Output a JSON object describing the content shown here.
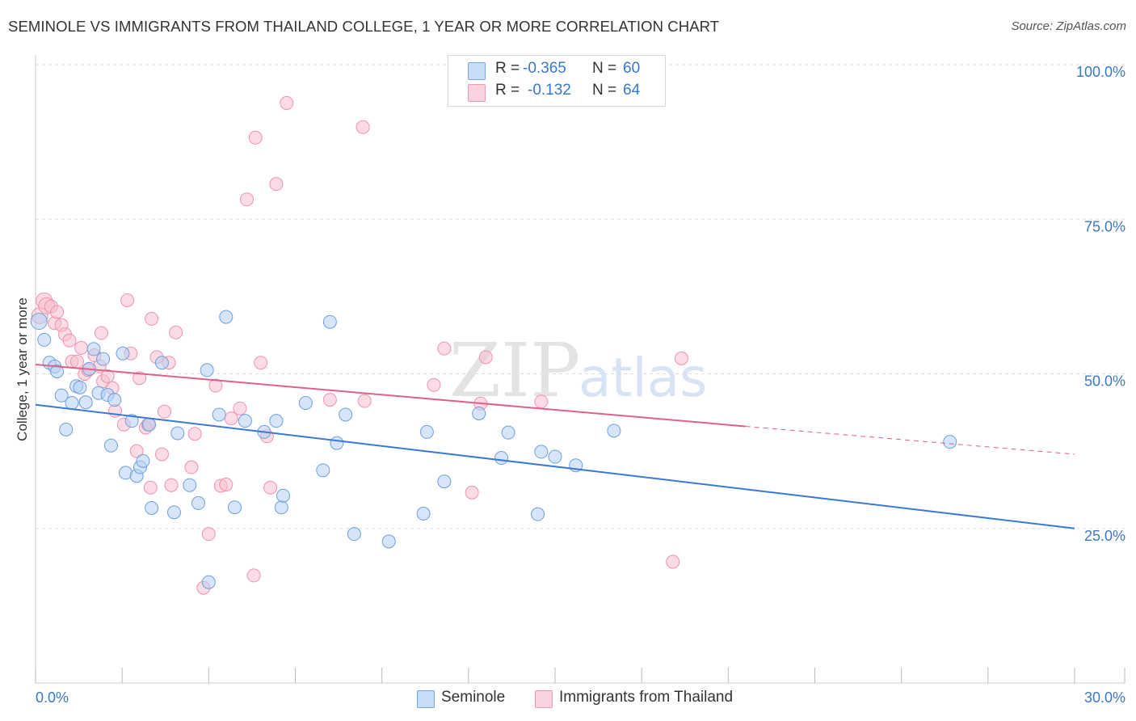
{
  "title": "SEMINOLE VS IMMIGRANTS FROM THAILAND COLLEGE, 1 YEAR OR MORE CORRELATION CHART",
  "source": "Source: ZipAtlas.com",
  "watermark": {
    "zip": "ZIP",
    "atlas": "atlas"
  },
  "legend_top": [
    {
      "r_label": "R =",
      "r_value": "-0.365",
      "n_label": "N =",
      "n_value": "60",
      "color": "#a8c8f0"
    },
    {
      "r_label": "R =",
      "r_value": "-0.132",
      "n_label": "N =",
      "n_value": "64",
      "color": "#f6b8c9"
    }
  ],
  "legend_bottom": [
    {
      "label": "Seminole",
      "color": "#a8c8f0"
    },
    {
      "label": "Immigrants from Thailand",
      "color": "#f6b8c9"
    }
  ],
  "chart_data": {
    "type": "scatter",
    "title": "SEMINOLE VS IMMIGRANTS FROM THAILAND COLLEGE, 1 YEAR OR MORE CORRELATION CHART",
    "xlabel": "",
    "ylabel": "College, 1 year or more",
    "xlim": [
      0,
      30
    ],
    "ylim": [
      0,
      100
    ],
    "x_tick_labels": [
      "0.0%",
      "30.0%"
    ],
    "y_tick_labels": [
      "25.0%",
      "50.0%",
      "75.0%",
      "100.0%"
    ],
    "y_ticks": [
      25,
      50,
      75,
      100
    ],
    "colors": {
      "seminole": "#3a78d4",
      "thailand": "#e0608c",
      "axis_text": "#3a78c8"
    },
    "series": [
      {
        "name": "Seminole",
        "R": -0.365,
        "N": 60,
        "trend": {
          "x0": 0,
          "y0": 45.0,
          "x1": 30,
          "y1": 25.0
        },
        "points": [
          [
            0.1,
            58.5
          ],
          [
            0.25,
            55.5
          ],
          [
            0.4,
            51.8
          ],
          [
            0.55,
            51.2
          ],
          [
            0.62,
            50.4
          ],
          [
            0.75,
            46.5
          ],
          [
            0.88,
            41.0
          ],
          [
            1.05,
            45.3
          ],
          [
            1.18,
            48.0
          ],
          [
            1.28,
            47.8
          ],
          [
            1.45,
            45.4
          ],
          [
            1.55,
            50.8
          ],
          [
            1.68,
            54.0
          ],
          [
            1.82,
            46.9
          ],
          [
            1.95,
            52.4
          ],
          [
            2.08,
            46.6
          ],
          [
            2.18,
            38.4
          ],
          [
            2.28,
            45.8
          ],
          [
            2.52,
            53.3
          ],
          [
            2.6,
            34.0
          ],
          [
            2.78,
            42.4
          ],
          [
            2.92,
            33.5
          ],
          [
            3.02,
            34.9
          ],
          [
            3.1,
            35.9
          ],
          [
            3.28,
            41.8
          ],
          [
            3.35,
            28.3
          ],
          [
            3.65,
            51.8
          ],
          [
            4.0,
            27.6
          ],
          [
            4.1,
            40.4
          ],
          [
            4.45,
            32.0
          ],
          [
            4.7,
            29.1
          ],
          [
            4.95,
            50.6
          ],
          [
            5.0,
            16.3
          ],
          [
            5.3,
            43.4
          ],
          [
            5.5,
            59.2
          ],
          [
            5.75,
            28.4
          ],
          [
            6.05,
            42.4
          ],
          [
            6.6,
            40.6
          ],
          [
            6.95,
            42.4
          ],
          [
            7.1,
            28.4
          ],
          [
            7.15,
            30.3
          ],
          [
            7.8,
            45.3
          ],
          [
            8.3,
            34.4
          ],
          [
            8.5,
            58.4
          ],
          [
            8.7,
            38.8
          ],
          [
            8.95,
            43.4
          ],
          [
            9.2,
            24.1
          ],
          [
            10.2,
            22.9
          ],
          [
            11.2,
            27.4
          ],
          [
            11.3,
            40.6
          ],
          [
            11.8,
            32.6
          ],
          [
            12.8,
            43.6
          ],
          [
            13.45,
            36.4
          ],
          [
            13.65,
            40.5
          ],
          [
            14.5,
            27.3
          ],
          [
            14.6,
            37.4
          ],
          [
            15.0,
            36.6
          ],
          [
            15.6,
            35.2
          ],
          [
            16.7,
            40.8
          ],
          [
            26.4,
            39.0
          ]
        ]
      },
      {
        "name": "Immigrants from Thailand",
        "R": -0.132,
        "N": 64,
        "trend": {
          "x0": 0,
          "y0": 51.5,
          "x1": 20.5,
          "y1": 41.5,
          "dash_x1": 30,
          "dash_y1": 37.0
        },
        "points": [
          [
            0.12,
            59.4
          ],
          [
            0.25,
            61.8
          ],
          [
            0.32,
            61.0
          ],
          [
            0.45,
            60.9
          ],
          [
            0.55,
            58.2
          ],
          [
            0.62,
            60.0
          ],
          [
            0.75,
            57.9
          ],
          [
            0.85,
            56.4
          ],
          [
            0.98,
            55.4
          ],
          [
            1.05,
            52.0
          ],
          [
            1.2,
            52.0
          ],
          [
            1.32,
            54.2
          ],
          [
            1.42,
            50.0
          ],
          [
            1.52,
            50.6
          ],
          [
            1.7,
            53.0
          ],
          [
            1.85,
            51.2
          ],
          [
            1.95,
            48.8
          ],
          [
            2.08,
            49.6
          ],
          [
            2.22,
            47.7
          ],
          [
            2.3,
            44.0
          ],
          [
            1.9,
            56.6
          ],
          [
            2.55,
            41.8
          ],
          [
            2.65,
            61.9
          ],
          [
            2.75,
            53.3
          ],
          [
            2.92,
            37.5
          ],
          [
            3.0,
            49.3
          ],
          [
            3.18,
            41.3
          ],
          [
            3.25,
            41.8
          ],
          [
            3.32,
            31.6
          ],
          [
            3.35,
            58.9
          ],
          [
            3.5,
            52.7
          ],
          [
            3.65,
            37.0
          ],
          [
            3.72,
            43.9
          ],
          [
            3.85,
            51.8
          ],
          [
            3.92,
            32.0
          ],
          [
            4.05,
            56.7
          ],
          [
            4.5,
            34.9
          ],
          [
            4.6,
            40.3
          ],
          [
            4.85,
            15.4
          ],
          [
            5.0,
            24.1
          ],
          [
            5.2,
            48.1
          ],
          [
            5.35,
            31.9
          ],
          [
            5.5,
            32.1
          ],
          [
            5.65,
            42.8
          ],
          [
            5.9,
            44.4
          ],
          [
            6.1,
            78.2
          ],
          [
            6.3,
            17.4
          ],
          [
            6.35,
            88.2
          ],
          [
            6.5,
            51.8
          ],
          [
            6.68,
            39.9
          ],
          [
            6.78,
            31.6
          ],
          [
            6.95,
            80.7
          ],
          [
            7.25,
            93.8
          ],
          [
            8.5,
            45.8
          ],
          [
            9.45,
            89.9
          ],
          [
            9.5,
            45.6
          ],
          [
            11.5,
            48.2
          ],
          [
            11.8,
            54.1
          ],
          [
            12.6,
            30.8
          ],
          [
            13.0,
            52.7
          ],
          [
            12.85,
            45.2
          ],
          [
            14.6,
            45.5
          ],
          [
            18.4,
            19.6
          ],
          [
            18.65,
            52.5
          ]
        ]
      }
    ]
  }
}
